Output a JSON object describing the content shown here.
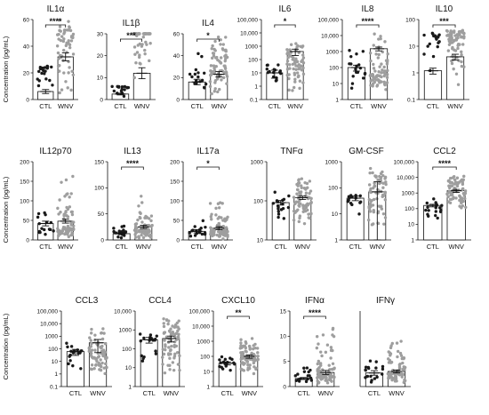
{
  "figure": {
    "categories": [
      "CTL",
      "WNV"
    ],
    "ylabel": "Concentration (pg/mL)",
    "colors": {
      "ctl": "#1a1a1a",
      "wnv": "#9e9e9e",
      "axis": "#111111"
    }
  },
  "chart_data": [
    {
      "type": "scatter",
      "title": "IL1α",
      "scale": "linear",
      "ylim": [
        0,
        60
      ],
      "ticks": [
        "0",
        "20",
        "40",
        "60"
      ],
      "significance": "****",
      "means": [
        6,
        32
      ],
      "sems": [
        1.5,
        3
      ],
      "points": [
        [
          20,
          0,
          15,
          25
        ],
        [
          60,
          0,
          60,
          40
        ]
      ]
    },
    {
      "type": "scatter",
      "title": "IL1β",
      "scale": "linear",
      "ylim": [
        0,
        30
      ],
      "ticks": [
        "0",
        "10",
        "20",
        "30"
      ],
      "significance": "***",
      "means": [
        2.5,
        12
      ],
      "sems": [
        0.4,
        2.5
      ],
      "points": [
        [
          18,
          0.5,
          5,
          6
        ],
        [
          70,
          1,
          29,
          35
        ]
      ]
    },
    {
      "type": "scatter",
      "title": "IL4",
      "scale": "linear",
      "ylim": [
        0,
        60
      ],
      "ticks": [
        "0",
        "20",
        "40",
        "60"
      ],
      "significance": "*",
      "means": [
        16,
        23
      ],
      "sems": [
        2.5,
        2.5
      ],
      "points": [
        [
          18,
          3,
          45,
          20
        ],
        [
          75,
          0,
          60,
          30
        ]
      ]
    },
    {
      "type": "scatter",
      "title": "IL6",
      "scale": "log",
      "ylim": [
        0.1,
        100000
      ],
      "ticks": [
        "0.1",
        "1",
        "10",
        "100",
        "1000",
        "10,000",
        "100,000"
      ],
      "significance": "*",
      "means": [
        10,
        400
      ],
      "sems": [
        6,
        200
      ],
      "points": [
        [
          16,
          0.5,
          2,
          40
        ],
        [
          70,
          0.3,
          10000,
          50
        ]
      ]
    },
    {
      "type": "scatter",
      "title": "IL8",
      "scale": "log",
      "ylim": [
        1,
        100000
      ],
      "ticks": [
        "1",
        "10",
        "100",
        "1000",
        "10,000",
        "100,000"
      ],
      "significance": "****",
      "means": [
        100,
        1500
      ],
      "sems": [
        40,
        400
      ],
      "points": [
        [
          18,
          2,
          2000,
          50
        ],
        [
          75,
          2,
          20000,
          45
        ]
      ]
    },
    {
      "type": "scatter",
      "title": "IL10",
      "scale": "log",
      "ylim": [
        0.1,
        100
      ],
      "ticks": [
        "0.1",
        "1",
        "10",
        "100"
      ],
      "significance": "***",
      "means": [
        1.2,
        4
      ],
      "sems": [
        0.3,
        1
      ],
      "points": [
        [
          18,
          0.1,
          3,
          45
        ],
        [
          72,
          0.3,
          10,
          40
        ]
      ]
    },
    {
      "type": "scatter",
      "title": "IL12p70",
      "scale": "linear",
      "ylim": [
        0,
        200
      ],
      "ticks": [
        "0",
        "50",
        "100",
        "150",
        "200"
      ],
      "significance": "",
      "means": [
        42,
        48
      ],
      "sems": [
        6,
        5
      ],
      "points": [
        [
          18,
          10,
          100,
          30
        ],
        [
          75,
          5,
          175,
          30
        ]
      ]
    },
    {
      "type": "scatter",
      "title": "IL13",
      "scale": "linear",
      "ylim": [
        0,
        150
      ],
      "ticks": [
        "0",
        "50",
        "100",
        "150"
      ],
      "significance": "****",
      "means": [
        12,
        25
      ],
      "sems": [
        2,
        3
      ],
      "points": [
        [
          20,
          2,
          35,
          15
        ],
        [
          75,
          2,
          95,
          20
        ]
      ]
    },
    {
      "type": "scatter",
      "title": "IL17a",
      "scale": "linear",
      "ylim": [
        0,
        200
      ],
      "ticks": [
        "0",
        "50",
        "100",
        "150",
        "200"
      ],
      "significance": "*",
      "means": [
        22,
        30
      ],
      "sems": [
        4,
        4
      ],
      "points": [
        [
          18,
          5,
          55,
          20
        ],
        [
          75,
          2,
          110,
          25
        ]
      ]
    },
    {
      "type": "scatter",
      "title": "TNFα",
      "scale": "log",
      "ylim": [
        10,
        1000
      ],
      "ticks": [
        "10",
        "100",
        "1000"
      ],
      "significance": "",
      "means": [
        90,
        120
      ],
      "sems": [
        12,
        12
      ],
      "points": [
        [
          18,
          30,
          300,
          90
        ],
        [
          75,
          20,
          400,
          120
        ]
      ]
    },
    {
      "type": "scatter",
      "title": "GM-CSF",
      "scale": "log",
      "ylim": [
        1,
        1000
      ],
      "ticks": [
        "1",
        "10",
        "100",
        "1000"
      ],
      "significance": "",
      "means": [
        40,
        70
      ],
      "sems": [
        8,
        100
      ],
      "points": [
        [
          16,
          8,
          60,
          40
        ],
        [
          72,
          2,
          1000,
          50
        ]
      ]
    },
    {
      "type": "scatter",
      "title": "CCL2",
      "scale": "log",
      "ylim": [
        1,
        100000
      ],
      "ticks": [
        "1",
        "10",
        "100",
        "1000",
        "10,000",
        "100,000"
      ],
      "significance": "****",
      "means": [
        160,
        1400
      ],
      "sems": [
        30,
        300
      ],
      "points": [
        [
          18,
          20,
          500,
          150
        ],
        [
          75,
          50,
          25000,
          1200
        ]
      ]
    },
    {
      "type": "scatter",
      "title": "CCL3",
      "scale": "log",
      "ylim": [
        0.1,
        100000
      ],
      "ticks": [
        "0.1",
        "1",
        "10",
        "100",
        "1000",
        "10,000",
        "100,000"
      ],
      "significance": "",
      "means": [
        60,
        300
      ],
      "sems": [
        30,
        250
      ],
      "points": [
        [
          18,
          2,
          700,
          50
        ],
        [
          75,
          0.3,
          6000,
          60
        ]
      ]
    },
    {
      "type": "scatter",
      "title": "CCL4",
      "scale": "log",
      "ylim": [
        1,
        10000
      ],
      "ticks": [
        "1",
        "10",
        "100",
        "1000",
        "10,000"
      ],
      "significance": "",
      "means": [
        300,
        350
      ],
      "sems": [
        100,
        120
      ],
      "points": [
        [
          18,
          5,
          1500,
          250
        ],
        [
          75,
          3,
          8000,
          300
        ]
      ]
    },
    {
      "type": "scatter",
      "title": "CXCL10",
      "scale": "log",
      "ylim": [
        1,
        100000
      ],
      "ticks": [
        "1",
        "10",
        "100",
        "1000",
        "10,000",
        "100,000"
      ],
      "significance": "**",
      "means": [
        35,
        100
      ],
      "sems": [
        8,
        25
      ],
      "points": [
        [
          18,
          10,
          100,
          35
        ],
        [
          75,
          5,
          2000,
          80
        ]
      ]
    },
    {
      "type": "scatter",
      "title": "IFNα",
      "scale": "linear",
      "ylim": [
        0,
        15
      ],
      "ticks": [
        "0",
        "5",
        "10",
        "15"
      ],
      "significance": "****",
      "means": [
        1.6,
        2.8
      ],
      "sems": [
        0.2,
        0.4
      ],
      "points": [
        [
          18,
          0.3,
          4,
          1.6
        ],
        [
          75,
          0.2,
          13,
          2.5
        ]
      ]
    },
    {
      "type": "scatter",
      "title": "IFNγ",
      "scale": "linear",
      "ylim": [
        0,
        100
      ],
      "ticks": [],
      "significance": "",
      "means": [
        18,
        20
      ],
      "sems": [
        3,
        2
      ],
      "points": [
        [
          18,
          5,
          50,
          16
        ],
        [
          75,
          3,
          65,
          18
        ]
      ]
    }
  ]
}
